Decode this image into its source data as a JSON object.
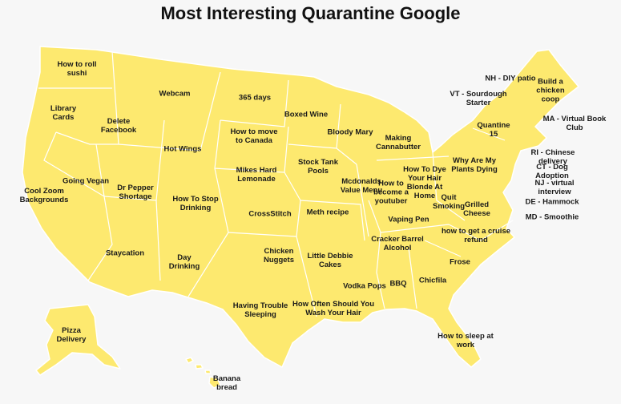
{
  "title": "Most Interesting Quarantine Google",
  "labels": [
    "How to roll sushi",
    "Library Cards",
    "Delete Facebook",
    "Webcam",
    "365 days",
    "How to move to Canada",
    "Hot Wings",
    "Boxed Wine",
    "Bloody Mary",
    "Making Cannabutter",
    "Going Vegan",
    "Cool Zoom Backgrounds",
    "Dr Pepper Shortage",
    "Mikes Hard Lemonade",
    "Stock Tank Pools",
    "Mcdonalds Value Menu",
    "How to become a youtuber",
    "How To Dye Your Hair Blonde At Home",
    "Why Are My Plants Dying",
    "Quit Smoking",
    "Grilled Cheese",
    "How To Stop Drinking",
    "CrossStitch",
    "Meth recipe",
    "Vaping Pen",
    "how to get a cruise refund",
    "Cracker Barrel Alcohol",
    "Staycation",
    "Day Drinking",
    "Chicken Nuggets",
    "Little Debbie Cakes",
    "Frose",
    "Vodka Pops",
    "BBQ",
    "Chicfila",
    "Having Trouble Sleeping",
    "How Often Should You Wash Your Hair",
    "How to sleep at work",
    "Pizza Delivery",
    "Banana bread",
    "NH - DIY patio",
    "Build a chicken coop",
    "VT - Sourdough Starter",
    "Quantine 15",
    "MA - Virtual Book Club",
    "RI - Chinese delivery",
    "CT - Dog Adoption",
    "NJ - virtual interview",
    "DE - Hammock",
    "MD - Smoothie"
  ]
}
